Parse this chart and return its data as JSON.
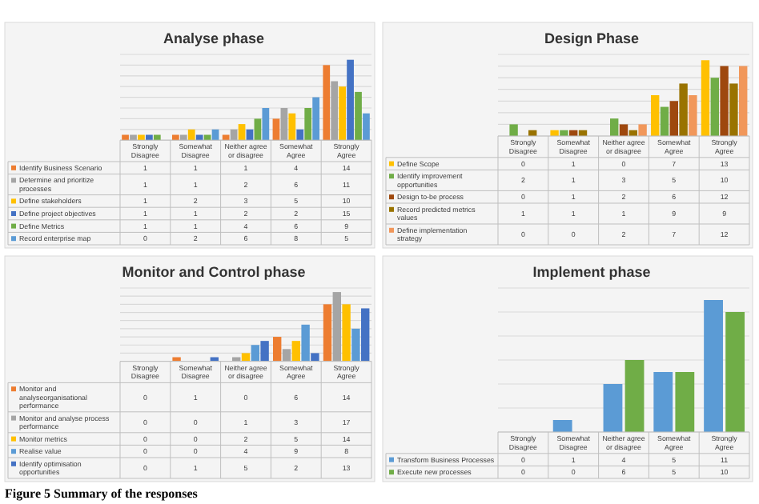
{
  "chart_data": [
    {
      "type": "bar",
      "title": "Analyse phase",
      "categories": [
        "Strongly Disagree",
        "Somewhat Disagree",
        "Neither agree or disagree",
        "Somewhat Agree",
        "Strongly Agree"
      ],
      "series": [
        {
          "name": "Identify Business Scenario",
          "color": "#ed7d31",
          "values": [
            1,
            1,
            1,
            4,
            14
          ]
        },
        {
          "name": "Determine and prioritize processes",
          "color": "#a5a5a5",
          "values": [
            1,
            1,
            2,
            6,
            11
          ]
        },
        {
          "name": "Define stakeholders",
          "color": "#ffc000",
          "values": [
            1,
            2,
            3,
            5,
            10
          ]
        },
        {
          "name": "Define project objectives",
          "color": "#4472c4",
          "values": [
            1,
            1,
            2,
            2,
            15
          ]
        },
        {
          "name": "Define Metrics",
          "color": "#70ad47",
          "values": [
            1,
            1,
            4,
            6,
            9
          ]
        },
        {
          "name": "Record enterprise map",
          "color": "#5b9bd5",
          "values": [
            0,
            2,
            6,
            8,
            5
          ]
        }
      ],
      "ylim": [
        0,
        16
      ],
      "yticks": [
        {
          "value": 0,
          "label": null
        },
        {
          "value": 2,
          "label": null
        },
        {
          "value": 4,
          "label": null
        },
        {
          "value": 6,
          "label": null
        },
        {
          "value": 8,
          "label": null
        },
        {
          "value": 10,
          "label": null
        },
        {
          "value": 12,
          "label": null
        },
        {
          "value": 14,
          "label": null
        },
        {
          "value": 16,
          "label": null
        }
      ],
      "grid": "y",
      "tick_labels": "x",
      "legend": "bottom",
      "data_labels": true
    },
    {
      "type": "bar",
      "title": "Design Phase",
      "categories": [
        "Strongly Disagree",
        "Somewhat Disagree",
        "Neither agree or disagree",
        "Somewhat Agree",
        "Strongly Agree"
      ],
      "series": [
        {
          "name": "Define Scope",
          "color": "#ffc000",
          "values": [
            0,
            1,
            0,
            7,
            13
          ]
        },
        {
          "name": "Identify improvement opportunities",
          "color": "#70ad47",
          "values": [
            2,
            1,
            3,
            5,
            10
          ]
        },
        {
          "name": "Design to-be process",
          "color": "#9e480e",
          "values": [
            0,
            1,
            2,
            6,
            12
          ]
        },
        {
          "name": "Record predicted metrics values",
          "color": "#997300",
          "values": [
            1,
            1,
            1,
            9,
            9
          ]
        },
        {
          "name": "Define implementation strategy",
          "color": "#f1975a",
          "values": [
            0,
            0,
            2,
            7,
            12
          ]
        }
      ],
      "ylim": [
        0,
        14
      ],
      "yticks": [
        {
          "value": 0,
          "label": null
        },
        {
          "value": 2,
          "label": null
        },
        {
          "value": 4,
          "label": null
        },
        {
          "value": 6,
          "label": null
        },
        {
          "value": 8,
          "label": null
        },
        {
          "value": 10,
          "label": null
        },
        {
          "value": 12,
          "label": null
        },
        {
          "value": 14,
          "label": null
        }
      ],
      "grid": "y",
      "tick_labels": "x",
      "legend": "bottom",
      "data_labels": true
    },
    {
      "type": "bar",
      "title": "Monitor and Control phase",
      "categories": [
        "Strongly Disagree",
        "Somewhat Disagree",
        "Neither agree or disagree",
        "Somewhat Agree",
        "Strongly Agree"
      ],
      "series": [
        {
          "name": "Monitor and analyseorganisational performance",
          "color": "#ed7d31",
          "values": [
            0,
            1,
            0,
            6,
            14
          ]
        },
        {
          "name": "Monitor and analyse process performance",
          "color": "#a5a5a5",
          "values": [
            0,
            0,
            1,
            3,
            17
          ]
        },
        {
          "name": "Monitor metrics",
          "color": "#ffc000",
          "values": [
            0,
            0,
            2,
            5,
            14
          ]
        },
        {
          "name": "Realise value",
          "color": "#5b9bd5",
          "values": [
            0,
            0,
            4,
            9,
            8
          ]
        },
        {
          "name": "Identify optimisation opportunities",
          "color": "#4472c4",
          "values": [
            0,
            1,
            5,
            2,
            13
          ]
        }
      ],
      "ylim": [
        0,
        18
      ],
      "yticks": [
        {
          "value": 0,
          "label": null
        },
        {
          "value": 2,
          "label": null
        },
        {
          "value": 4,
          "label": null
        },
        {
          "value": 6,
          "label": null
        },
        {
          "value": 8,
          "label": null
        },
        {
          "value": 10,
          "label": null
        },
        {
          "value": 12,
          "label": null
        },
        {
          "value": 14,
          "label": null
        },
        {
          "value": 16,
          "label": null
        },
        {
          "value": 18,
          "label": null
        }
      ],
      "grid": "y",
      "tick_labels": "x",
      "legend": "bottom",
      "data_labels": true,
      "annotations": [
        "Figure 5 Summary of the responses"
      ]
    },
    {
      "type": "bar",
      "title": "Implement phase",
      "categories": [
        "Strongly Disagree",
        "Somewhat Disagree",
        "Neither agree or disagree",
        "Somewhat Agree",
        "Strongly Agree"
      ],
      "series": [
        {
          "name": "Transform Business Processes",
          "color": "#5b9bd5",
          "values": [
            0,
            1,
            4,
            5,
            11
          ]
        },
        {
          "name": "Execute new processes",
          "color": "#70ad47",
          "values": [
            0,
            0,
            6,
            5,
            10
          ]
        }
      ],
      "ylim": [
        0,
        12
      ],
      "yticks": [
        {
          "value": 0,
          "label": null
        },
        {
          "value": 2,
          "label": null
        },
        {
          "value": 4,
          "label": null
        },
        {
          "value": 6,
          "label": null
        },
        {
          "value": 8,
          "label": null
        },
        {
          "value": 10,
          "label": null
        },
        {
          "value": 12,
          "label": null
        }
      ],
      "grid": "y",
      "tick_labels": "x",
      "legend": "bottom",
      "data_labels": true
    }
  ]
}
